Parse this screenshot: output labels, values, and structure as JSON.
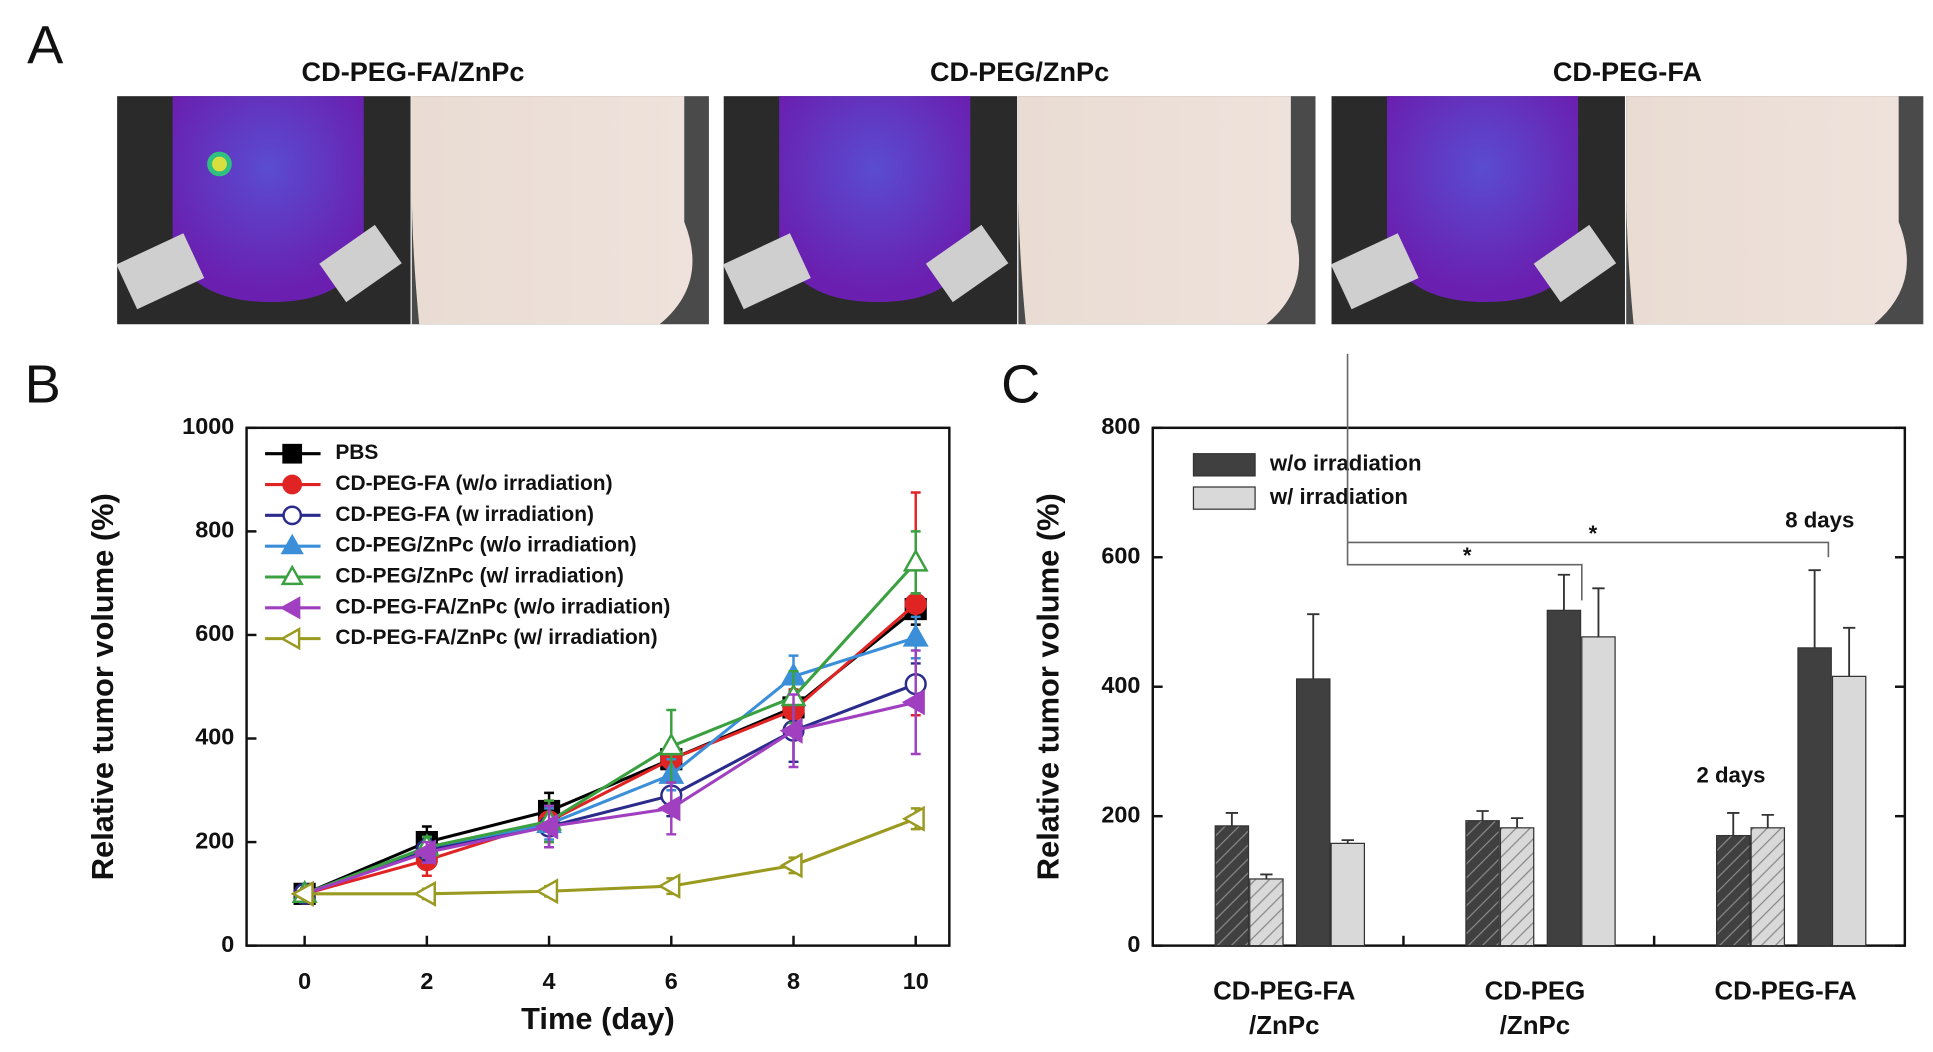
{
  "panel_a": {
    "label": "A",
    "titles": [
      "CD-PEG-FA/ZnPc",
      "CD-PEG/ZnPc",
      "CD-PEG-FA"
    ]
  },
  "chart_data": [
    {
      "type": "line",
      "panel_label": "B",
      "x_label": "Time (day)",
      "y_label": "Relative tumor volume (%)",
      "x": [
        0,
        2,
        4,
        6,
        8,
        10
      ],
      "xlim": [
        -0.95,
        10.55
      ],
      "xticks": [
        0,
        2,
        4,
        6,
        8,
        10
      ],
      "ylim": [
        0,
        1000
      ],
      "yticks": [
        0,
        200,
        400,
        600,
        800,
        1000
      ],
      "legend": "upper-left",
      "series": [
        {
          "name": "PBS",
          "color": "#000000",
          "marker": "square",
          "filled": true,
          "values": [
            100,
            200,
            260,
            360,
            460,
            650
          ],
          "errors": [
            5,
            30,
            35,
            30,
            30,
            30
          ]
        },
        {
          "name": "CD-PEG-FA (w/o irradiation)",
          "color": "#e02424",
          "marker": "circle",
          "filled": true,
          "values": [
            100,
            165,
            240,
            360,
            455,
            660
          ],
          "errors": [
            5,
            30,
            40,
            30,
            40,
            215
          ]
        },
        {
          "name": "CD-PEG-FA (w irradiation)",
          "color": "#2b2b8c",
          "marker": "circle",
          "filled": false,
          "values": [
            100,
            185,
            230,
            290,
            415,
            505
          ],
          "errors": [
            5,
            20,
            40,
            40,
            60,
            40
          ]
        },
        {
          "name": "CD-PEG/ZnPc (w/o irradiation)",
          "color": "#3a8fd8",
          "marker": "triangle-up",
          "filled": true,
          "values": [
            100,
            190,
            235,
            330,
            520,
            595
          ],
          "errors": [
            5,
            20,
            30,
            30,
            40,
            40
          ]
        },
        {
          "name": "CD-PEG/ZnPc (w/ irradiation)",
          "color": "#3aa040",
          "marker": "triangle-up",
          "filled": false,
          "values": [
            100,
            190,
            240,
            385,
            480,
            740
          ],
          "errors": [
            5,
            20,
            40,
            70,
            50,
            60
          ]
        },
        {
          "name": "CD-PEG-FA/ZnPc (w/o irradiation)",
          "color": "#a040c0",
          "marker": "triangle-left",
          "filled": true,
          "values": [
            100,
            180,
            230,
            265,
            415,
            470
          ],
          "errors": [
            5,
            20,
            40,
            50,
            70,
            100
          ]
        },
        {
          "name": "CD-PEG-FA/ZnPc (w/ irradiation)",
          "color": "#9a9a20",
          "marker": "triangle-left",
          "filled": false,
          "values": [
            100,
            100,
            105,
            115,
            155,
            245
          ],
          "errors": [
            5,
            10,
            10,
            15,
            15,
            20
          ]
        }
      ]
    },
    {
      "type": "bar",
      "panel_label": "C",
      "y_label": "Relative tumor volume (%)",
      "categories": [
        [
          "CD-PEG-FA",
          "/ZnPc"
        ],
        [
          "CD-PEG",
          "/ZnPc"
        ],
        [
          "CD-PEG-FA"
        ]
      ],
      "ylim": [
        0,
        800
      ],
      "yticks": [
        0,
        200,
        400,
        600,
        800
      ],
      "legend": "upper-left",
      "series": [
        {
          "name": "w/o irradiation",
          "color": "#404040"
        },
        {
          "name": "w/ irradiation",
          "color": "#d9d9d9"
        }
      ],
      "periods": [
        {
          "label": "2 days",
          "hatched": true,
          "values": [
            [
              185,
              193,
              170
            ],
            [
              103,
              182,
              182
            ]
          ],
          "errors": [
            [
              20,
              15,
              35
            ],
            [
              7,
              15,
              20
            ]
          ]
        },
        {
          "label": "8 days",
          "hatched": false,
          "values": [
            [
              412,
              518,
              460
            ],
            [
              158,
              477,
              416
            ]
          ],
          "errors": [
            [
              100,
              55,
              120
            ],
            [
              5,
              75,
              75
            ]
          ]
        }
      ],
      "significance": [
        "*",
        "*"
      ]
    }
  ]
}
